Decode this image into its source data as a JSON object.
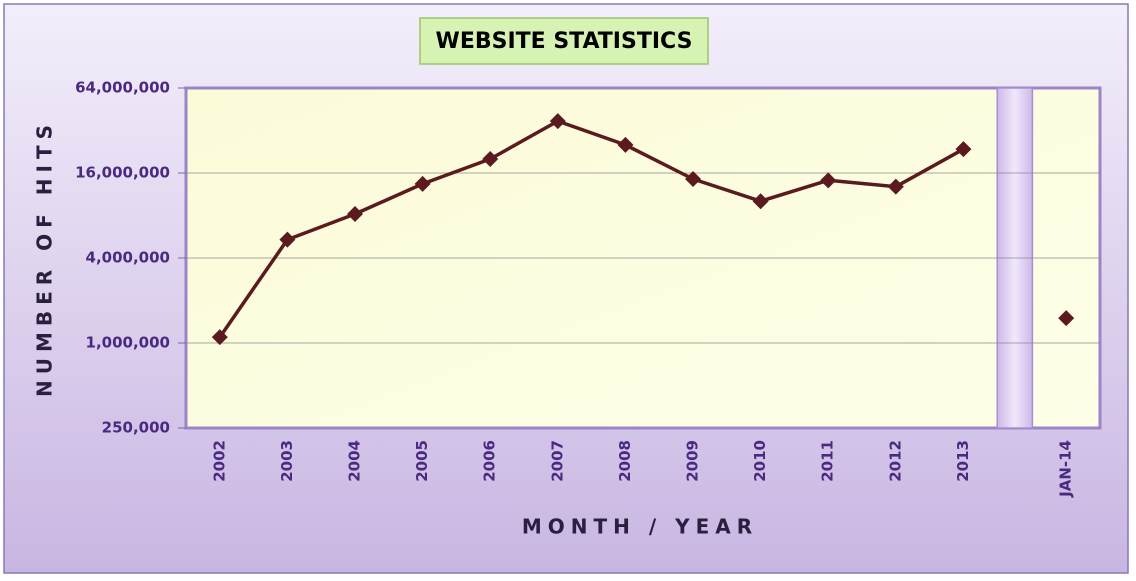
{
  "chart_data": {
    "type": "line",
    "title": "WEBSITE STATISTICS",
    "x_label": "MONTH / YEAR",
    "y_label": "NUMBER OF HITS",
    "categories": [
      "2002",
      "2003",
      "2004",
      "2005",
      "2006",
      "2007",
      "2008",
      "2009",
      "2010",
      "2011",
      "2012",
      "2013",
      null,
      "JAN-14"
    ],
    "series": [
      {
        "color": "#5a1a1e",
        "values": [
          1100000,
          5400000,
          8200000,
          13400000,
          20100000,
          37300000,
          25300000,
          14500000,
          10100000,
          14200000,
          12800000,
          23600000,
          null,
          1500000
        ]
      }
    ],
    "log_scale": true,
    "ylim": [
      250000,
      64000000
    ],
    "yticks": [
      {
        "value": 250000,
        "label": "250,000"
      },
      {
        "value": 1000000,
        "label": "1,000,000"
      },
      {
        "value": 4000000,
        "label": "4,000,000"
      },
      {
        "value": 16000000,
        "label": "16,000,000"
      },
      {
        "value": 64000000,
        "label": "64,000,000"
      }
    ],
    "grid": true
  }
}
